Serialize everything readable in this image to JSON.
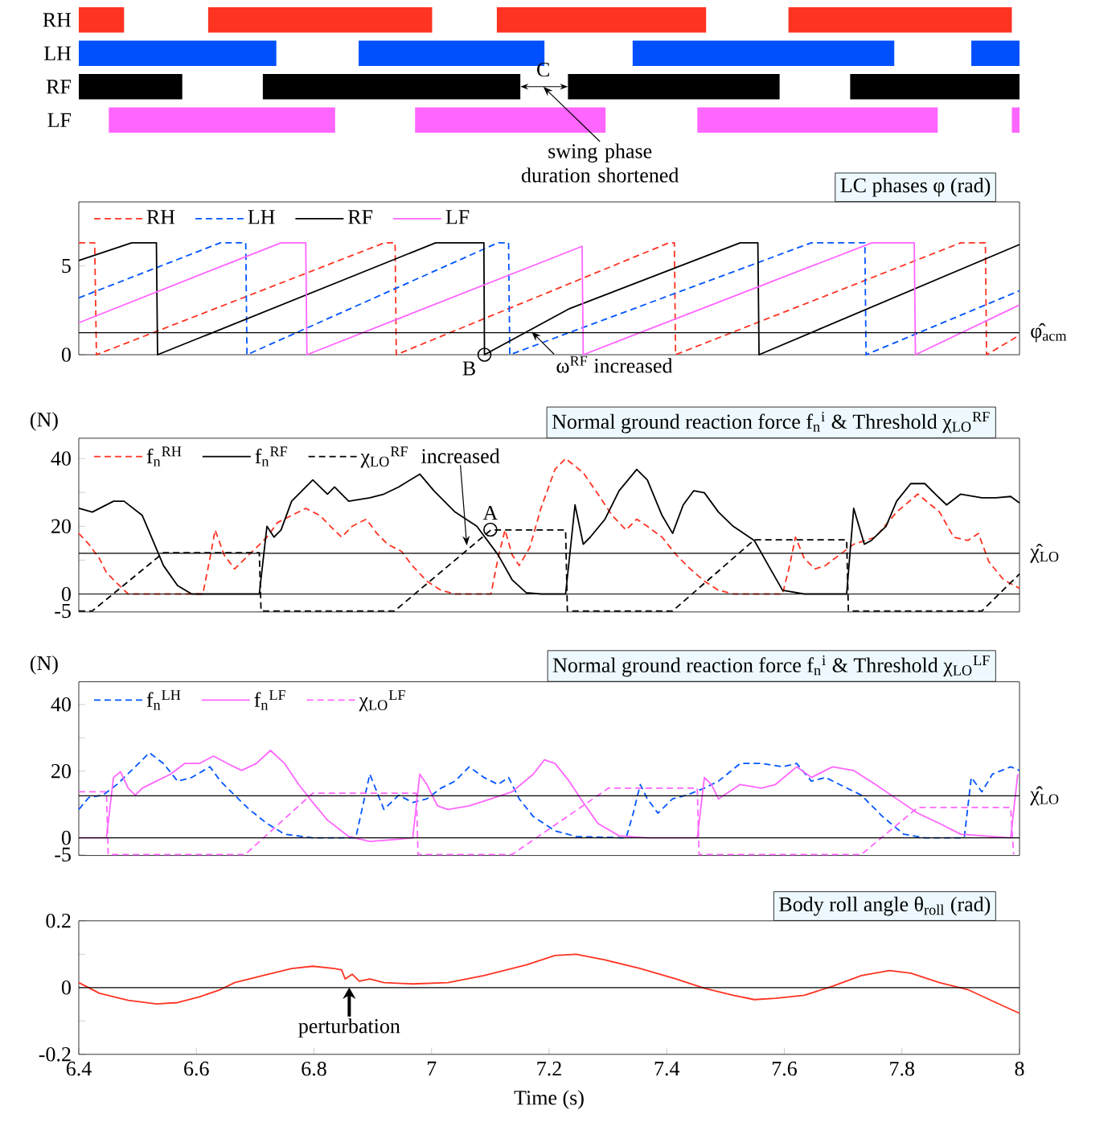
{
  "chart_data": [
    {
      "type": "bar",
      "orientation": "horizontal",
      "categories": [
        "RH",
        "LH",
        "RF",
        "LF"
      ],
      "xlim": [
        6.4,
        8
      ],
      "tick_labels": "y",
      "series": [
        {
          "colors": [
            "#ff3322",
            "#0050ff",
            "#000000",
            "#ff66ff"
          ],
          "base": [
            6.4,
            6.4,
            6.4,
            6.451
          ],
          "values": [
            0.077,
            0.336,
            0.176,
            0.385
          ]
        },
        {
          "colors": [
            "#ff3322",
            "#0050ff",
            "#000000",
            "#ff66ff"
          ],
          "base": [
            6.62,
            6.876,
            6.713,
            6.972
          ],
          "values": [
            0.381,
            0.316,
            0.438,
            0.324
          ]
        },
        {
          "colors": [
            "#ff3322",
            "#0050ff",
            "#000000",
            "#ff66ff"
          ],
          "base": [
            7.111,
            7.342,
            7.232,
            7.452
          ],
          "values": [
            0.356,
            0.445,
            0.36,
            0.409
          ]
        },
        {
          "colors": [
            "#ff3322",
            "#0050ff",
            "#000000",
            "#ff66ff"
          ],
          "base": [
            7.607,
            7.918,
            7.712,
            7.987
          ],
          "values": [
            0.38,
            0.082,
            0.288,
            0.013
          ]
        }
      ],
      "annotations": [
        {
          "text": "C",
          "x": 7.19,
          "y": "RF"
        },
        "swing phase duration shortened"
      ]
    },
    {
      "type": "line",
      "title": "LC phases  φ (rad)",
      "xlim": [
        6.4,
        8
      ],
      "ylim": [
        0,
        8.6
      ],
      "yticks": [
        0,
        5
      ],
      "tick_labels": "y",
      "legend": "top left",
      "marker": "none",
      "series": [
        {
          "name": "RH",
          "color": "#ff3322",
          "line_style": "dashed",
          "x": [
            6.4,
            6.427,
            6.43,
            6.92,
            6.938,
            6.94,
            7.404,
            7.413,
            7.415,
            7.9,
            7.942,
            7.944,
            8.0
          ],
          "values": [
            6.3,
            6.3,
            0,
            6.3,
            6.3,
            0,
            6.3,
            6.3,
            0,
            6.3,
            6.3,
            0,
            1.1
          ]
        },
        {
          "name": "LH",
          "color": "#0055ff",
          "line_style": "dashed",
          "x": [
            6.4,
            6.641,
            6.684,
            6.686,
            7.113,
            7.131,
            7.133,
            7.646,
            7.737,
            7.739,
            8.0
          ],
          "values": [
            3.2,
            6.3,
            6.3,
            0,
            6.3,
            6.3,
            0,
            6.3,
            6.3,
            0,
            3.6
          ]
        },
        {
          "name": "RF",
          "color": "#000000",
          "line_style": "solid",
          "x": [
            6.4,
            6.49,
            6.532,
            6.534,
            7.007,
            7.089,
            7.09,
            7.235,
            7.525,
            7.555,
            7.557,
            8.0
          ],
          "values": [
            5.3,
            6.3,
            6.3,
            0,
            6.3,
            6.3,
            0,
            2.6,
            6.3,
            6.3,
            0,
            6.2
          ]
        },
        {
          "name": "LF",
          "color": "#ff66ff",
          "line_style": "solid",
          "x": [
            6.4,
            6.744,
            6.786,
            6.788,
            7.256,
            7.258,
            7.749,
            7.821,
            7.823,
            8.0
          ],
          "values": [
            1.8,
            6.3,
            6.3,
            0,
            6.1,
            0,
            6.3,
            6.3,
            0,
            2.8
          ]
        }
      ],
      "ref_lines": [
        {
          "axis": "y",
          "value": 1.24,
          "label": "φ̂$_{acm}$"
        }
      ],
      "annotations": [
        {
          "text": "B",
          "x": 7.09,
          "y": 0
        },
        {
          "text": "ω$^{RF}$ increased",
          "x": 7.17,
          "y": 1.3
        }
      ]
    },
    {
      "type": "line",
      "title": "Normal ground reaction force f$_{n}$$^{i}$ & Threshold χ$_{LO}$$^{RF}$",
      "ylabel": "(N)",
      "xlim": [
        6.4,
        8
      ],
      "ylim": [
        -5.3,
        46
      ],
      "yticks": [
        -5,
        0,
        {
          "value": 10,
          "label": null
        },
        20,
        {
          "value": 30,
          "label": null
        },
        40
      ],
      "tick_labels": "y",
      "legend": "top left",
      "marker": "none",
      "series": [
        {
          "name": "f$_{n}$$^{RH}$",
          "color": "#ff3322",
          "line_style": "dashed",
          "x": [
            6.4,
            6.417,
            6.435,
            6.447,
            6.465,
            6.484,
            6.611,
            6.623,
            6.632,
            6.647,
            6.665,
            6.683,
            6.702,
            6.72,
            6.738,
            6.762,
            6.786,
            6.81,
            6.828,
            6.847,
            6.865,
            6.889,
            6.907,
            6.925,
            6.949,
            6.967,
            6.992,
            7.016,
            7.04,
            7.101,
            7.113,
            7.125,
            7.137,
            7.149,
            7.167,
            7.186,
            7.21,
            7.228,
            7.258,
            7.283,
            7.307,
            7.331,
            7.349,
            7.367,
            7.392,
            7.416,
            7.44,
            7.464,
            7.488,
            7.513,
            7.597,
            7.609,
            7.619,
            7.634,
            7.652,
            7.67,
            7.694,
            7.718,
            7.755,
            7.791,
            7.827,
            7.864,
            7.888,
            7.912,
            7.93,
            7.948,
            7.973,
            8.0
          ],
          "values": [
            17.9,
            14.7,
            10.5,
            6.3,
            3.2,
            0,
            0,
            10.5,
            18.9,
            11.6,
            7.4,
            10.5,
            13.7,
            16.8,
            21.1,
            23.2,
            25.3,
            23.2,
            20,
            16.8,
            20,
            22.1,
            17.9,
            14.7,
            12.6,
            8.4,
            3.8,
            1.1,
            0,
            0,
            10.5,
            18.9,
            11.6,
            8.4,
            13.7,
            25.3,
            36.8,
            40,
            35.8,
            29.5,
            23.2,
            18.9,
            22.1,
            20,
            16.8,
            11.6,
            7.4,
            3.8,
            1.1,
            0,
            0,
            8.4,
            16.8,
            10.5,
            7.4,
            8.4,
            11.6,
            14.7,
            16.8,
            24.2,
            29.5,
            24.2,
            16.8,
            15.8,
            17.9,
            9.5,
            4.2,
            1.7
          ]
        },
        {
          "name": "f$_{n}$$^{RF}$",
          "color": "#000000",
          "line_style": "solid",
          "x": [
            6.4,
            6.423,
            6.459,
            6.477,
            6.508,
            6.526,
            6.544,
            6.568,
            6.592,
            6.617,
            6.707,
            6.72,
            6.732,
            6.744,
            6.762,
            6.798,
            6.823,
            6.835,
            6.859,
            6.895,
            6.919,
            6.944,
            6.98,
            7.004,
            7.04,
            7.077,
            7.113,
            7.137,
            7.161,
            7.186,
            7.228,
            7.244,
            7.258,
            7.27,
            7.295,
            7.319,
            7.349,
            7.367,
            7.392,
            7.41,
            7.428,
            7.446,
            7.464,
            7.488,
            7.513,
            7.549,
            7.573,
            7.597,
            7.634,
            7.706,
            7.718,
            7.736,
            7.748,
            7.773,
            7.791,
            7.815,
            7.839,
            7.857,
            7.876,
            7.9,
            7.936,
            7.96,
            7.985,
            8.0
          ],
          "values": [
            25.3,
            24.2,
            27.4,
            27.4,
            23.2,
            15.8,
            8.4,
            2.5,
            0,
            0,
            0,
            20,
            16.8,
            18.9,
            27.4,
            33.7,
            29.5,
            31.6,
            27.4,
            28.4,
            29.5,
            31.6,
            35.4,
            30.5,
            24.2,
            20,
            11.6,
            4.2,
            0.4,
            0,
            0,
            26.3,
            14.7,
            16.8,
            22.1,
            30.5,
            36.8,
            33.7,
            23.2,
            17.9,
            26.3,
            30.5,
            29.9,
            24.2,
            20,
            15.8,
            8.4,
            1.1,
            0,
            0,
            25.3,
            14.7,
            15.8,
            20,
            27.4,
            32.6,
            32.6,
            29.5,
            26.3,
            29.5,
            28.4,
            28.4,
            28.8,
            26.9
          ]
        },
        {
          "name": "χ$_{LO}$$^{RF}$",
          "color": "#000000",
          "line_style": "dashed",
          "x": [
            6.4,
            6.423,
            6.544,
            6.707,
            6.71,
            6.937,
            7.101,
            7.228,
            7.231,
            7.41,
            7.549,
            7.706,
            7.709,
            7.936,
            8.0
          ],
          "values": [
            -5,
            -5,
            12.2,
            12.2,
            -5,
            -5,
            18.9,
            18.9,
            -5,
            -5,
            16,
            16,
            -5,
            -5,
            5.9
          ]
        }
      ],
      "ref_lines": [
        {
          "axis": "y",
          "value": 0
        },
        {
          "axis": "y",
          "value": 12,
          "label": "χ̂$_{LO}$"
        }
      ],
      "annotations": [
        {
          "text": "A",
          "x": 7.1,
          "y": 19
        },
        {
          "text": "increased",
          "x": 7.06,
          "y": 14.3
        }
      ]
    },
    {
      "type": "line",
      "title": "Normal ground reaction force f$_{n}$$^{i}$ & Threshold χ$_{LO}$$^{LF}$",
      "ylabel": "(N)",
      "xlim": [
        6.4,
        8
      ],
      "ylim": [
        -5.3,
        46.8
      ],
      "yticks": [
        -5,
        0,
        {
          "value": 10,
          "label": null
        },
        20,
        {
          "value": 30,
          "label": null
        },
        40
      ],
      "tick_labels": "y",
      "legend": "top left",
      "marker": "none",
      "series": [
        {
          "name": "f$_{n}$$^{LH}$",
          "color": "#0055ff",
          "line_style": "dashed",
          "x": [
            6.4,
            6.417,
            6.441,
            6.465,
            6.496,
            6.52,
            6.544,
            6.568,
            6.592,
            6.623,
            6.641,
            6.665,
            6.69,
            6.72,
            6.75,
            6.798,
            6.871,
            6.883,
            6.895,
            6.907,
            6.919,
            6.944,
            6.968,
            6.992,
            7.016,
            7.04,
            7.064,
            7.089,
            7.113,
            7.131,
            7.149,
            7.173,
            7.21,
            7.246,
            7.331,
            7.343,
            7.355,
            7.367,
            7.385,
            7.41,
            7.434,
            7.464,
            7.488,
            7.525,
            7.561,
            7.597,
            7.621,
            7.646,
            7.67,
            7.694,
            7.731,
            7.767,
            7.803,
            7.839,
            7.906,
            7.918,
            7.936,
            7.954,
            7.985,
            8.0
          ],
          "values": [
            8.5,
            12.1,
            12.8,
            16,
            21.3,
            25.5,
            22.3,
            17,
            18.1,
            21.3,
            17,
            12.8,
            8.5,
            4.3,
            1.1,
            0,
            0,
            9.6,
            19.1,
            13.8,
            8.5,
            12.8,
            10.6,
            11.7,
            14.9,
            17,
            21.3,
            18.1,
            16,
            18.1,
            11.7,
            6.4,
            2.1,
            0.4,
            0,
            7.4,
            16,
            11.7,
            7.4,
            11.7,
            12.8,
            14.9,
            17,
            22.3,
            22.3,
            21.3,
            22.3,
            17,
            18.1,
            16,
            12.8,
            6.4,
            1.1,
            0,
            0,
            18.1,
            13.8,
            19.1,
            21.3,
            20.2
          ]
        },
        {
          "name": "f$_{n}$$^{LF}$",
          "color": "#ff66ff",
          "line_style": "solid",
          "x": [
            6.4,
            6.447,
            6.459,
            6.471,
            6.484,
            6.496,
            6.508,
            6.532,
            6.556,
            6.58,
            6.605,
            6.629,
            6.653,
            6.677,
            6.702,
            6.726,
            6.75,
            6.774,
            6.798,
            6.823,
            6.859,
            6.895,
            6.944,
            6.968,
            6.98,
            6.992,
            7.01,
            7.028,
            7.064,
            7.101,
            7.137,
            7.173,
            7.192,
            7.21,
            7.234,
            7.258,
            7.283,
            7.319,
            7.367,
            7.452,
            7.464,
            7.476,
            7.488,
            7.525,
            7.561,
            7.585,
            7.621,
            7.646,
            7.682,
            7.718,
            7.755,
            7.791,
            7.827,
            7.864,
            7.9,
            7.985,
            7.997
          ],
          "values": [
            0,
            0,
            18.1,
            19.8,
            14.9,
            12.8,
            14.9,
            17,
            19.1,
            22.3,
            22.3,
            24.5,
            22.3,
            20.2,
            22.3,
            26.2,
            22.3,
            16,
            10.6,
            5.3,
            0.4,
            -1.1,
            -0.4,
            0,
            19.1,
            16,
            9.6,
            8.5,
            9.6,
            11.7,
            13.8,
            19.1,
            23.4,
            22.3,
            17,
            10.6,
            4.3,
            0.6,
            0,
            0,
            18.1,
            16,
            11.7,
            16,
            14.9,
            16,
            21.3,
            18.1,
            21.3,
            20.2,
            16,
            11.7,
            7.4,
            4.3,
            1.1,
            0,
            19.1
          ]
        },
        {
          "name": "χ$_{LO}$$^{LF}$",
          "color": "#ff66ff",
          "line_style": "dashed",
          "x": [
            6.4,
            6.447,
            6.45,
            6.683,
            6.798,
            6.974,
            6.977,
            7.137,
            7.301,
            7.452,
            7.455,
            7.731,
            7.827,
            7.985,
            7.99
          ],
          "values": [
            13.8,
            13.8,
            -5,
            -5,
            13.4,
            13.4,
            -5,
            -5,
            14.9,
            14.9,
            -5,
            -5,
            9.1,
            9.1,
            -5
          ]
        }
      ],
      "ref_lines": [
        {
          "axis": "y",
          "value": 0
        },
        {
          "axis": "y",
          "value": 12.6,
          "label": "χ̂$_{LO}$"
        }
      ]
    },
    {
      "type": "line",
      "title": "Body roll angle θ$_{roll}$ (rad)",
      "xlabel": "Time (s)",
      "xlim": [
        6.4,
        8
      ],
      "ylim": [
        -0.2,
        0.2
      ],
      "xticks": [
        6.4,
        6.6,
        6.8,
        7,
        7.2,
        7.4,
        7.6,
        7.8,
        8
      ],
      "yticks": [
        -0.2,
        {
          "value": -0.1,
          "label": null
        },
        0,
        {
          "value": 0.1,
          "label": null
        },
        0.2
      ],
      "marker": "none",
      "series": [
        {
          "color": "#ff3322",
          "line_style": "solid",
          "x": [
            6.4,
            6.435,
            6.484,
            6.532,
            6.568,
            6.605,
            6.641,
            6.665,
            6.713,
            6.762,
            6.798,
            6.835,
            6.847,
            6.853,
            6.865,
            6.877,
            6.895,
            6.919,
            6.968,
            7.028,
            7.089,
            7.161,
            7.21,
            7.246,
            7.295,
            7.355,
            7.416,
            7.464,
            7.513,
            7.549,
            7.585,
            7.634,
            7.682,
            7.731,
            7.779,
            7.815,
            7.864,
            7.912,
            7.96,
            8.0
          ],
          "values": [
            0.015,
            -0.017,
            -0.038,
            -0.049,
            -0.045,
            -0.028,
            -0.006,
            0.015,
            0.036,
            0.057,
            0.064,
            0.057,
            0.053,
            0.026,
            0.04,
            0.019,
            0.026,
            0.015,
            0.011,
            0.015,
            0.036,
            0.068,
            0.096,
            0.1,
            0.083,
            0.057,
            0.026,
            -0.002,
            -0.023,
            -0.036,
            -0.032,
            -0.023,
            0.004,
            0.036,
            0.051,
            0.043,
            0.015,
            -0.006,
            -0.045,
            -0.077
          ]
        }
      ],
      "ref_lines": [
        {
          "axis": "y",
          "value": 0
        }
      ],
      "annotations": [
        {
          "text": "perturbation",
          "x": 6.86,
          "y": 0
        }
      ]
    }
  ]
}
